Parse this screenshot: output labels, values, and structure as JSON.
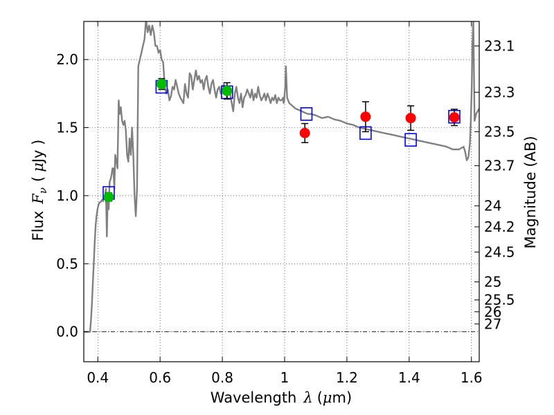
{
  "chart_data": {
    "type": "scatter",
    "title": "",
    "xlabel": {
      "prefix": "Wavelength",
      "symbol": "λ",
      "unit_open": "(",
      "unit_mu": "μ",
      "unit_rest": "m)"
    },
    "ylabel": {
      "prefix": "Flux",
      "symbol": "F",
      "subscript": "ν",
      "unit_open": "(",
      "unit_mu": "μ",
      "unit_rest": "Jy )"
    },
    "y2label": "Magnitude (AB)",
    "xlim": [
      0.355,
      1.625
    ],
    "ylim": [
      -0.22,
      2.28
    ],
    "grid": true,
    "grid_style": "dotted",
    "reference_line": {
      "y": 0.0,
      "style": "dash-dot",
      "color": "#000000"
    },
    "x_ticks": [
      {
        "value": 0.4,
        "label": "0.4"
      },
      {
        "value": 0.6,
        "label": "0.6"
      },
      {
        "value": 0.8,
        "label": "0.8"
      },
      {
        "value": 1.0,
        "label": "1"
      },
      {
        "value": 1.2,
        "label": "1.2"
      },
      {
        "value": 1.4,
        "label": "1.4"
      },
      {
        "value": 1.6,
        "label": "1.6"
      }
    ],
    "y_ticks": [
      {
        "value": 0.0,
        "label": "0.0"
      },
      {
        "value": 0.5,
        "label": "0.5"
      },
      {
        "value": 1.0,
        "label": "1.0"
      },
      {
        "value": 1.5,
        "label": "1.5"
      },
      {
        "value": 2.0,
        "label": "2.0"
      }
    ],
    "y2_ticks": [
      {
        "label": "23.1",
        "flux": 2.1
      },
      {
        "label": "23.3",
        "flux": 1.76
      },
      {
        "label": "23.5",
        "flux": 1.47
      },
      {
        "label": "23.7",
        "flux": 1.22
      },
      {
        "label": "24",
        "flux": 0.925
      },
      {
        "label": "24.2",
        "flux": 0.771
      },
      {
        "label": "24.5",
        "flux": 0.586
      },
      {
        "label": "25",
        "flux": 0.367
      },
      {
        "label": "25.5",
        "flux": 0.234
      },
      {
        "label": "26",
        "flux": 0.147
      },
      {
        "label": "27",
        "flux": 0.0582
      }
    ],
    "series": [
      {
        "type": "line",
        "color": "#808080",
        "x": [
          0.355,
          0.37,
          0.375,
          0.378,
          0.381,
          0.384,
          0.387,
          0.39,
          0.393,
          0.396,
          0.399,
          0.402,
          0.405,
          0.408,
          0.411,
          0.414,
          0.417,
          0.42,
          0.423,
          0.426,
          0.429,
          0.432,
          0.435,
          0.438,
          0.441,
          0.444,
          0.447,
          0.45,
          0.453,
          0.456,
          0.46,
          0.463,
          0.467,
          0.47,
          0.474,
          0.478,
          0.482,
          0.486,
          0.49,
          0.494,
          0.498,
          0.502,
          0.506,
          0.51,
          0.514,
          0.518,
          0.522,
          0.526,
          0.53,
          0.535,
          0.54,
          0.545,
          0.55,
          0.555,
          0.56,
          0.565,
          0.57,
          0.575,
          0.58,
          0.585,
          0.59,
          0.595,
          0.6,
          0.605,
          0.61,
          0.615,
          0.62,
          0.625,
          0.63,
          0.635,
          0.64,
          0.645,
          0.65,
          0.655,
          0.66,
          0.665,
          0.67,
          0.675,
          0.68,
          0.685,
          0.69,
          0.695,
          0.7,
          0.705,
          0.71,
          0.715,
          0.72,
          0.725,
          0.73,
          0.735,
          0.74,
          0.745,
          0.75,
          0.755,
          0.76,
          0.765,
          0.77,
          0.775,
          0.78,
          0.785,
          0.79,
          0.795,
          0.8,
          0.805,
          0.81,
          0.815,
          0.82,
          0.825,
          0.83,
          0.835,
          0.84,
          0.845,
          0.85,
          0.855,
          0.86,
          0.865,
          0.87,
          0.875,
          0.88,
          0.885,
          0.89,
          0.895,
          0.9,
          0.905,
          0.91,
          0.915,
          0.92,
          0.925,
          0.93,
          0.935,
          0.94,
          0.945,
          0.95,
          0.955,
          0.96,
          0.965,
          0.97,
          0.975,
          0.98,
          0.985,
          0.99,
          0.995,
          0.997,
          0.999,
          1.0,
          1.002,
          1.004,
          1.008,
          1.015,
          1.025,
          1.035,
          1.045,
          1.055,
          1.065,
          1.075,
          1.085,
          1.1,
          1.12,
          1.14,
          1.16,
          1.18,
          1.2,
          1.22,
          1.24,
          1.26,
          1.28,
          1.3,
          1.32,
          1.34,
          1.36,
          1.38,
          1.4,
          1.42,
          1.44,
          1.46,
          1.48,
          1.5,
          1.52,
          1.54,
          1.56,
          1.575,
          1.58,
          1.585,
          1.59,
          1.595,
          1.598,
          1.601,
          1.603,
          1.606,
          1.61,
          1.615,
          1.62,
          1.625
        ],
        "y": [
          0.0,
          0.0,
          0.0,
          0.08,
          0.2,
          0.35,
          0.5,
          0.65,
          0.78,
          0.85,
          0.9,
          0.93,
          0.95,
          0.95,
          0.96,
          0.97,
          0.96,
          0.98,
          1.0,
          1.05,
          0.7,
          1.0,
          0.9,
          1.1,
          1.12,
          1.15,
          1.2,
          1.2,
          1.05,
          1.3,
          1.25,
          1.2,
          1.7,
          1.6,
          1.65,
          1.55,
          1.52,
          1.55,
          1.48,
          1.3,
          1.25,
          1.42,
          1.3,
          1.5,
          1.3,
          1.0,
          0.85,
          1.05,
          1.95,
          2.0,
          2.05,
          2.1,
          2.15,
          2.3,
          2.2,
          2.25,
          2.18,
          2.25,
          2.2,
          2.1,
          2.1,
          2.05,
          2.07,
          2.0,
          1.98,
          1.8,
          1.75,
          1.78,
          1.7,
          1.73,
          1.8,
          1.78,
          1.85,
          1.8,
          1.75,
          1.72,
          1.7,
          1.68,
          1.82,
          1.75,
          1.72,
          1.9,
          1.88,
          1.78,
          1.85,
          1.92,
          1.85,
          1.88,
          1.83,
          1.85,
          1.78,
          1.85,
          1.88,
          1.8,
          1.75,
          1.82,
          1.85,
          1.78,
          1.72,
          1.78,
          1.8,
          1.75,
          1.78,
          1.82,
          1.78,
          1.72,
          1.8,
          1.75,
          1.68,
          1.62,
          1.75,
          1.8,
          1.72,
          1.68,
          1.75,
          1.65,
          1.72,
          1.74,
          1.78,
          1.75,
          1.72,
          1.78,
          1.7,
          1.75,
          1.72,
          1.8,
          1.74,
          1.7,
          1.72,
          1.75,
          1.7,
          1.75,
          1.72,
          1.68,
          1.72,
          1.7,
          1.74,
          1.68,
          1.72,
          1.7,
          1.7,
          1.72,
          1.68,
          1.7,
          1.75,
          1.8,
          1.95,
          1.72,
          1.68,
          1.66,
          1.64,
          1.63,
          1.62,
          1.61,
          1.6,
          1.6,
          1.59,
          1.57,
          1.58,
          1.56,
          1.55,
          1.53,
          1.52,
          1.5,
          1.49,
          1.48,
          1.47,
          1.46,
          1.45,
          1.44,
          1.43,
          1.42,
          1.41,
          1.4,
          1.39,
          1.38,
          1.37,
          1.36,
          1.34,
          1.34,
          1.36,
          1.32,
          1.26,
          1.28,
          1.38,
          1.55,
          1.8,
          2.1,
          2.28,
          1.55,
          1.6,
          1.62,
          1.64
        ]
      },
      {
        "type": "scatter",
        "marker": "square-open",
        "color": "#0000ff",
        "x": [
          0.435,
          0.605,
          0.815,
          1.07,
          1.26,
          1.405,
          1.545
        ],
        "y": [
          1.02,
          1.8,
          1.76,
          1.6,
          1.46,
          1.41,
          1.58
        ]
      },
      {
        "type": "scatter",
        "marker": "circle",
        "color": "#00bb00",
        "x": [
          0.435,
          0.605,
          0.815
        ],
        "y": [
          0.99,
          1.82,
          1.77
        ],
        "yerr": [
          0.03,
          0.04,
          0.06
        ]
      },
      {
        "type": "scatter",
        "marker": "circle",
        "color": "#ff0000",
        "x": [
          1.065,
          1.26,
          1.405,
          1.545
        ],
        "y": [
          1.46,
          1.58,
          1.57,
          1.575
        ],
        "yerr": [
          0.07,
          0.11,
          0.09,
          0.06
        ]
      }
    ]
  }
}
